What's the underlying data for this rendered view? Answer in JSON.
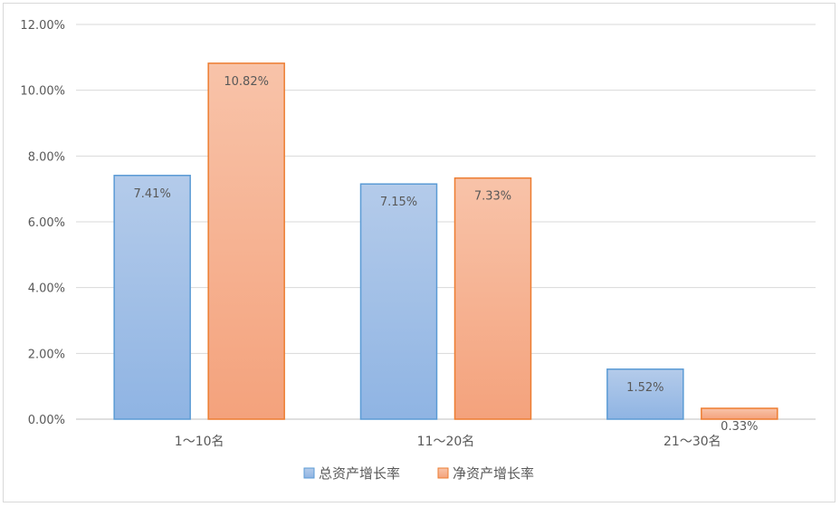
{
  "chart_data": {
    "type": "bar",
    "categories": [
      "1～10名",
      "11～20名",
      "21～30名"
    ],
    "series": [
      {
        "name": "总资产增长率",
        "values": [
          7.41,
          7.15,
          1.52
        ],
        "labels": [
          "7.41%",
          "7.15%",
          "1.52%"
        ],
        "color": "#5b9bd5"
      },
      {
        "name": "净资产增长率",
        "values": [
          10.82,
          7.33,
          0.33
        ],
        "labels": [
          "10.82%",
          "7.33%",
          "0.33%"
        ],
        "color": "#ed7d31"
      }
    ],
    "ylim": [
      0,
      12
    ],
    "yticks": [
      "0.00%",
      "2.00%",
      "4.00%",
      "6.00%",
      "8.00%",
      "10.00%",
      "12.00%"
    ],
    "grid": true,
    "legend_position": "bottom"
  }
}
